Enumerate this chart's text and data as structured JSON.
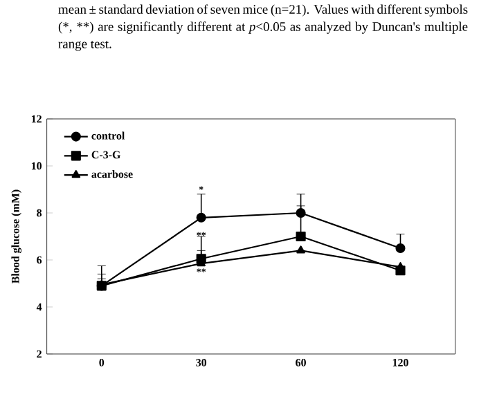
{
  "chart_data": {
    "type": "line",
    "title": "mean ± standard deviation of seven mice (n=21). Values with different symbols (*, **) are significantly different at *p*<0.05 as analyzed by Duncan's multiple range test.",
    "ylabel": "Blood glucose (mM)",
    "categories": [
      "0",
      "30",
      "60",
      "120"
    ],
    "series": [
      {
        "name": "control",
        "color": "#000000",
        "marker": "circle",
        "values": [
          4.9,
          7.8,
          8.0,
          6.5
        ],
        "errors": [
          [
            4.9,
            5.75
          ],
          [
            7.8,
            8.8
          ],
          [
            8.0,
            8.8
          ],
          [
            6.5,
            7.1
          ]
        ]
      },
      {
        "name": "C-3-G",
        "color": "#000000",
        "marker": "square",
        "values": [
          4.9,
          6.05,
          7.0,
          5.55
        ],
        "errors": [
          [
            4.9,
            5.4
          ],
          [
            6.05,
            7.0
          ],
          [
            7.0,
            8.3
          ],
          null
        ]
      },
      {
        "name": "acarbose",
        "color": "#000000",
        "marker": "triangle",
        "values": [
          4.95,
          5.85,
          6.4,
          5.7
        ],
        "errors": [
          [
            4.95,
            5.2
          ],
          [
            5.85,
            6.4
          ],
          null,
          null
        ]
      }
    ],
    "ylim": [
      2,
      12
    ],
    "yticks": [
      2,
      4,
      6,
      8,
      10,
      12
    ],
    "legend": "top left",
    "line_style": "solid",
    "annotations": [
      {
        "text": "*",
        "x": "30",
        "y": 9.0
      },
      {
        "text": "**",
        "x": "30",
        "y": 7.05
      },
      {
        "text": "**",
        "x": "30",
        "y": 5.5
      }
    ]
  }
}
